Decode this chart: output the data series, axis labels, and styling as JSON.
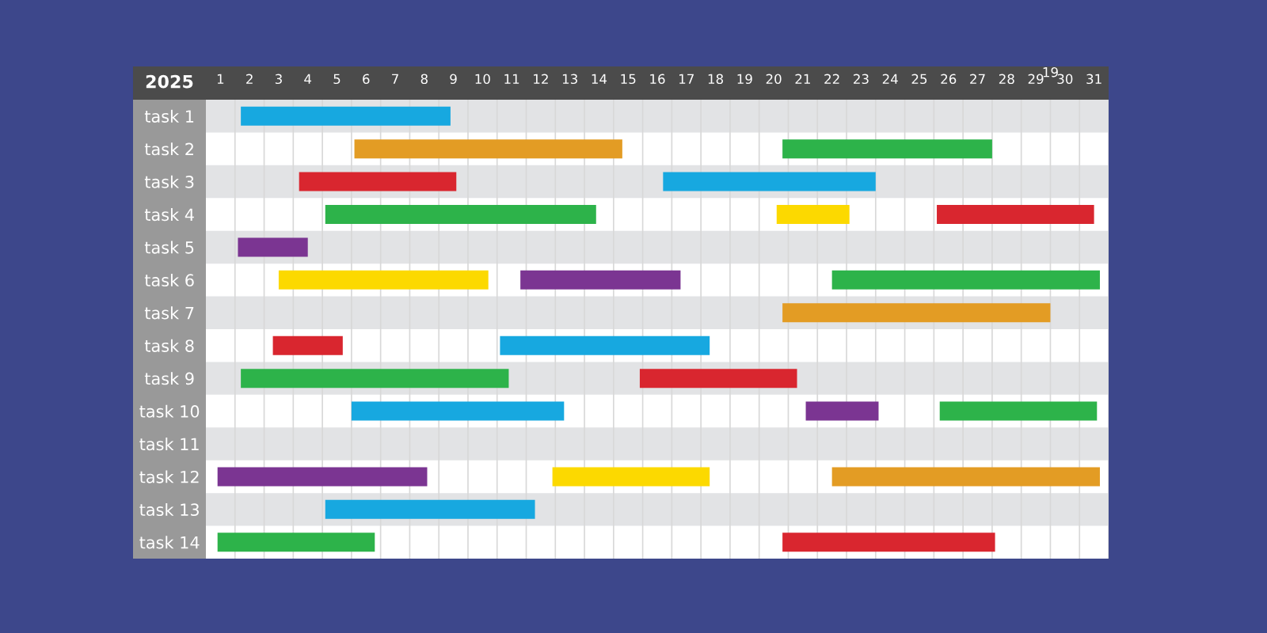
{
  "chart_data": {
    "type": "bar",
    "orientation": "horizontal",
    "annotations": [
      "2025",
      "19"
    ],
    "categories": [
      "task 1",
      "task 2",
      "task 3",
      "task 4",
      "task 5",
      "task 6",
      "task 7",
      "task 8",
      "task 9",
      "task 10",
      "task 11",
      "task 12",
      "task 13",
      "task 14"
    ],
    "xlim": [
      0.5,
      31.5
    ],
    "xticks": [
      1,
      2,
      3,
      4,
      5,
      6,
      7,
      8,
      9,
      10,
      11,
      12,
      13,
      14,
      15,
      16,
      17,
      18,
      19,
      20,
      21,
      22,
      23,
      24,
      25,
      26,
      27,
      28,
      29,
      30,
      31
    ],
    "grid": "x",
    "series": [
      {
        "color": "#17a8e0",
        "base": [
          1.7,
          null,
          16.2,
          null,
          null,
          null,
          null,
          10.6,
          null,
          5.5,
          null,
          null,
          4.6,
          null
        ],
        "values": [
          7.2,
          null,
          7.3,
          null,
          null,
          null,
          null,
          7.2,
          null,
          7.3,
          null,
          null,
          7.2,
          null
        ]
      },
      {
        "color": "#e39c24",
        "base": [
          null,
          5.6,
          null,
          null,
          null,
          null,
          20.3,
          null,
          null,
          null,
          null,
          22.0,
          null,
          null
        ],
        "values": [
          null,
          9.2,
          null,
          null,
          null,
          null,
          9.2,
          null,
          null,
          null,
          null,
          9.2,
          null,
          null
        ]
      },
      {
        "color": "#2db34a",
        "base": [
          null,
          20.3,
          null,
          4.6,
          null,
          22.0,
          null,
          null,
          1.7,
          25.7,
          null,
          null,
          null,
          0.9
        ],
        "values": [
          null,
          7.2,
          null,
          9.3,
          null,
          9.2,
          null,
          null,
          9.2,
          5.4,
          null,
          null,
          null,
          5.4
        ]
      },
      {
        "color": "#d9262f",
        "base": [
          null,
          null,
          3.7,
          25.6,
          null,
          null,
          null,
          2.8,
          15.4,
          null,
          null,
          null,
          null,
          20.3
        ],
        "values": [
          null,
          null,
          5.4,
          5.4,
          null,
          null,
          null,
          2.4,
          5.4,
          null,
          null,
          null,
          null,
          7.3
        ]
      },
      {
        "color": "#fcd900",
        "base": [
          null,
          null,
          null,
          20.1,
          null,
          3.0,
          null,
          null,
          null,
          null,
          null,
          12.4,
          null,
          null
        ],
        "values": [
          null,
          null,
          null,
          2.5,
          null,
          7.2,
          null,
          null,
          null,
          null,
          null,
          5.4,
          null,
          null
        ]
      },
      {
        "color": "#7b3592",
        "base": [
          null,
          null,
          null,
          null,
          1.6,
          11.3,
          null,
          null,
          null,
          21.1,
          null,
          0.9,
          null,
          null
        ],
        "values": [
          null,
          null,
          null,
          null,
          2.4,
          5.5,
          null,
          null,
          null,
          2.5,
          null,
          7.2,
          null,
          null
        ]
      }
    ]
  }
}
